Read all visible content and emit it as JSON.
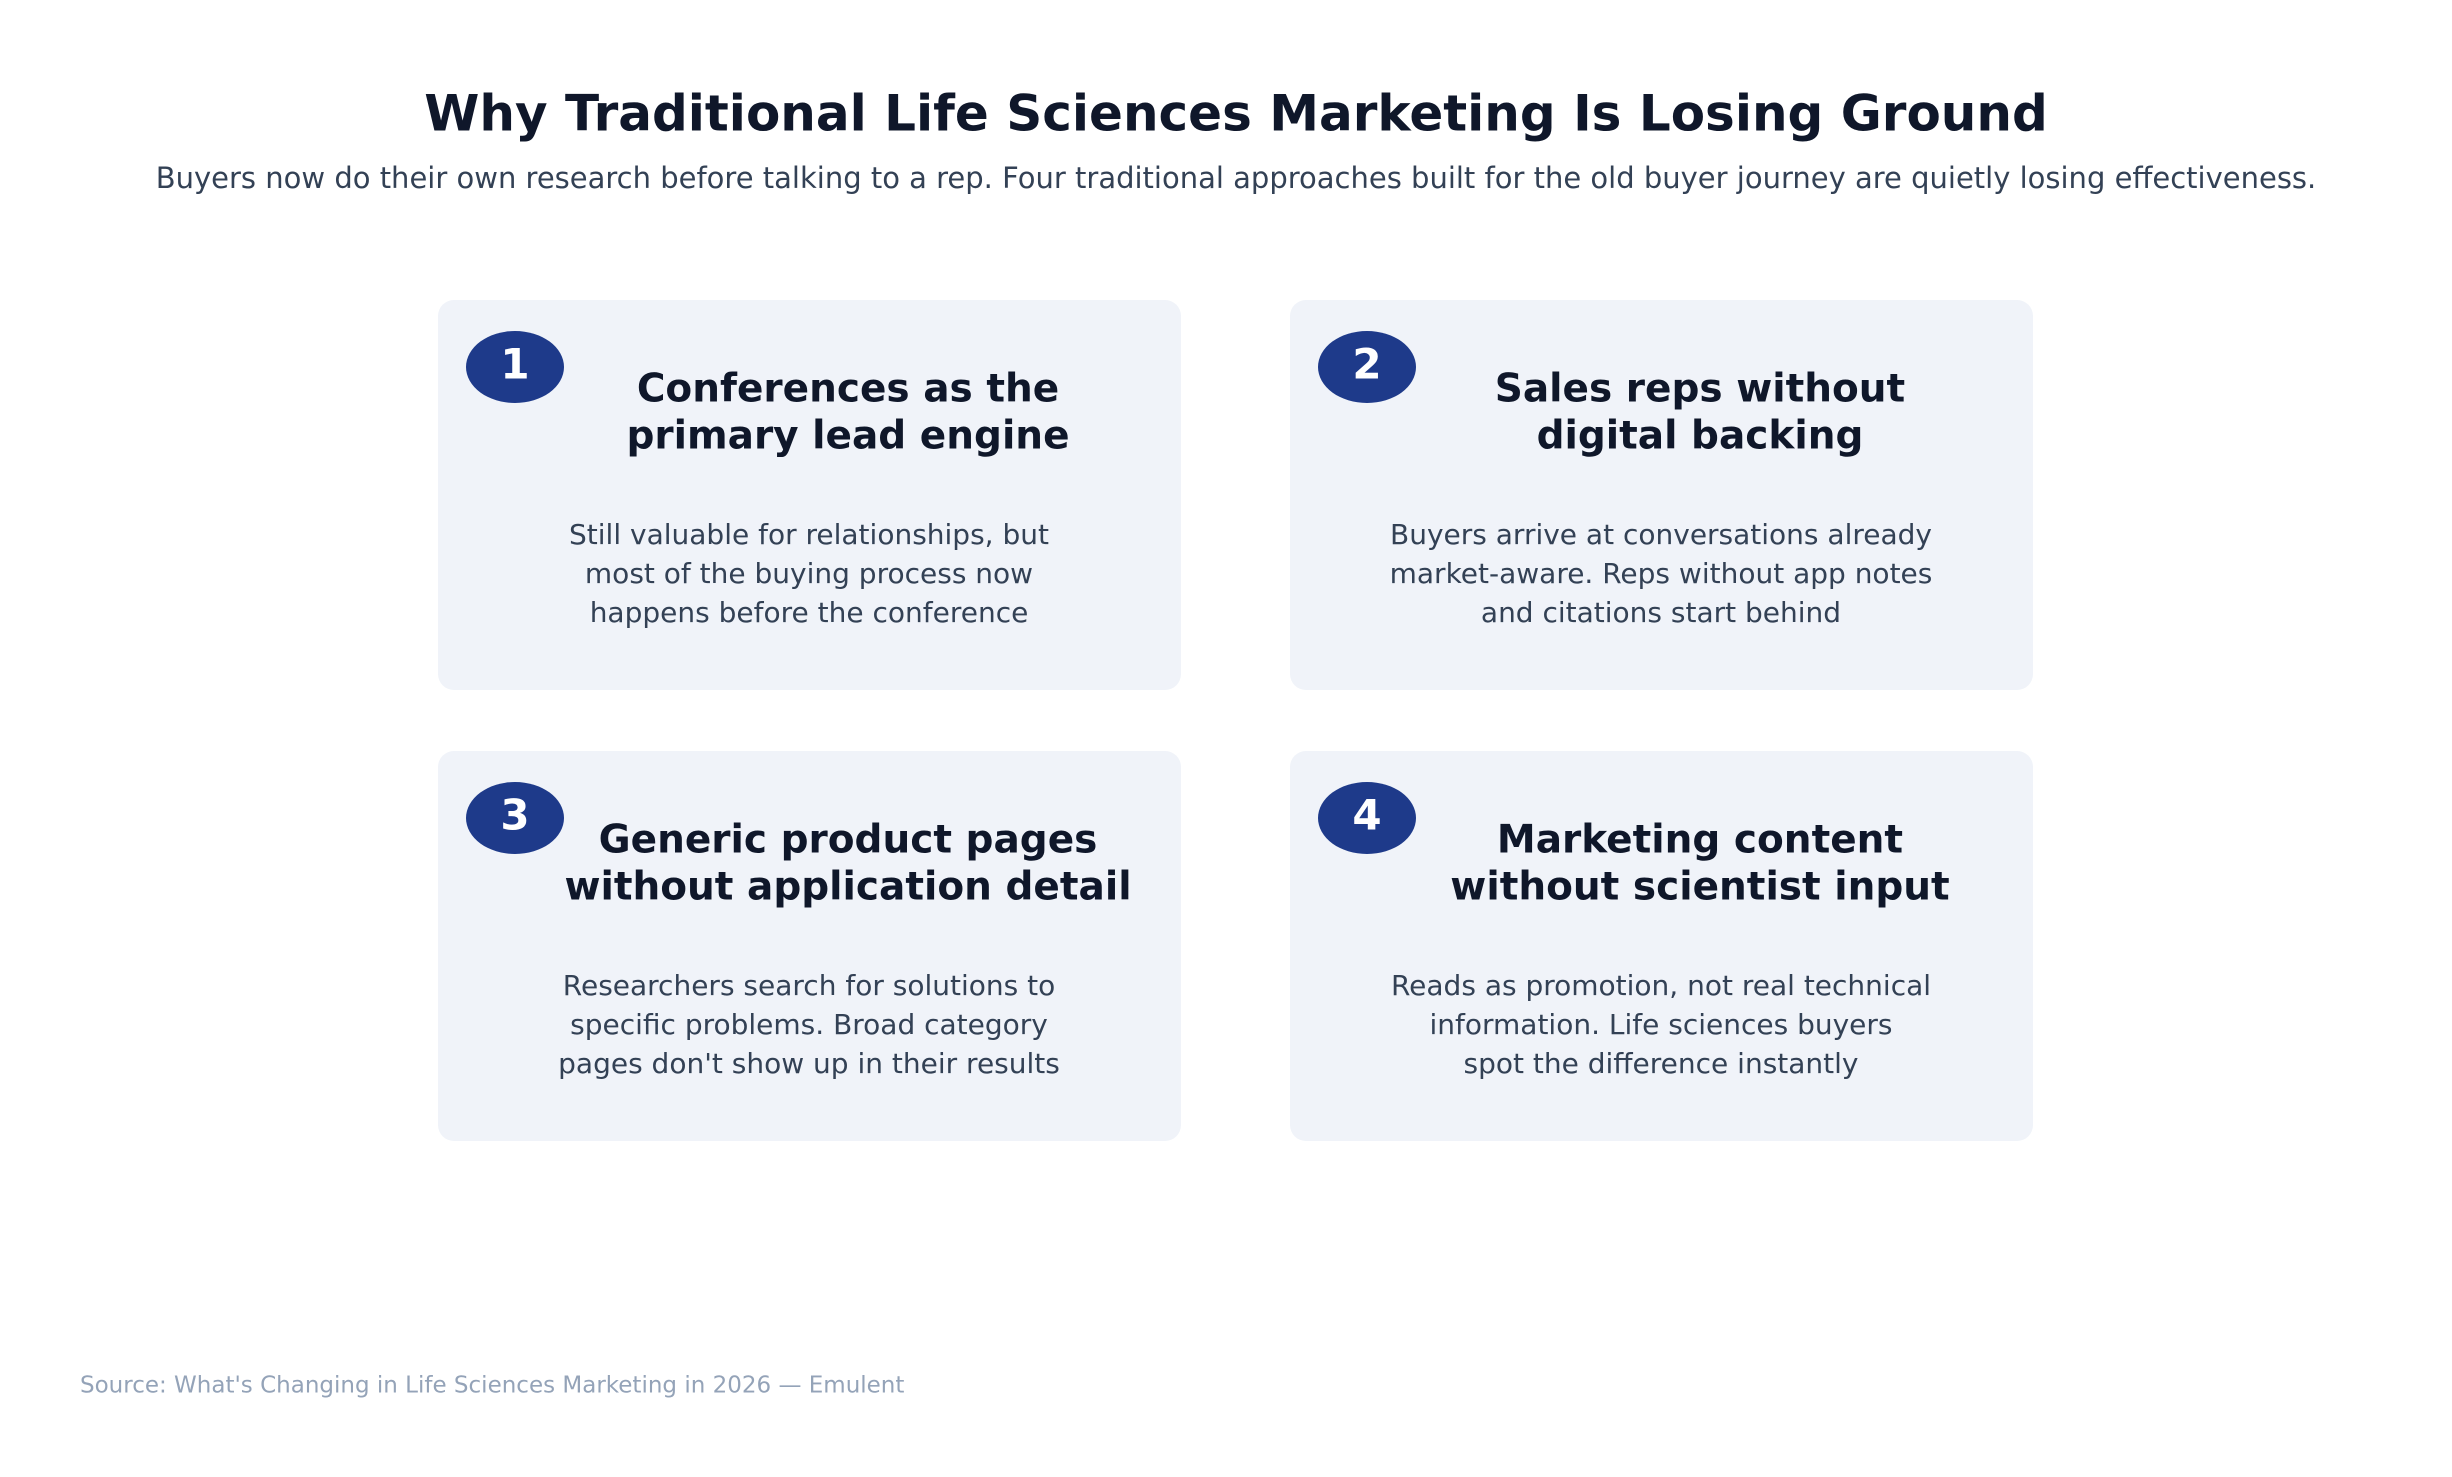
{
  "header": {
    "title": "Why Traditional Life Sciences Marketing Is Losing Ground",
    "subtitle": "Buyers now do their own research before talking to a rep. Four traditional approaches built for the old buyer journey are quietly losing effectiveness."
  },
  "cards": [
    {
      "number": "1",
      "title": [
        "Conferences as the",
        "primary lead engine"
      ],
      "description": [
        "Still valuable for relationships, but",
        "most of the buying process now",
        "happens before the conference"
      ]
    },
    {
      "number": "2",
      "title": [
        "Sales reps without",
        "digital backing"
      ],
      "description": [
        "Buyers arrive at conversations already",
        "market-aware. Reps without app notes",
        "and citations start behind"
      ]
    },
    {
      "number": "3",
      "title": [
        "Generic product pages",
        "without application detail"
      ],
      "description": [
        "Researchers search for solutions to",
        "specific problems. Broad category",
        "pages don't show up in their results"
      ]
    },
    {
      "number": "4",
      "title": [
        "Marketing content",
        "without scientist input"
      ],
      "description": [
        "Reads as promotion, not real technical",
        "information. Life sciences buyers",
        "spot the difference instantly"
      ]
    }
  ],
  "footer": {
    "source": "Source: What's Changing in Life Sciences Marketing in 2026 — Emulent"
  }
}
